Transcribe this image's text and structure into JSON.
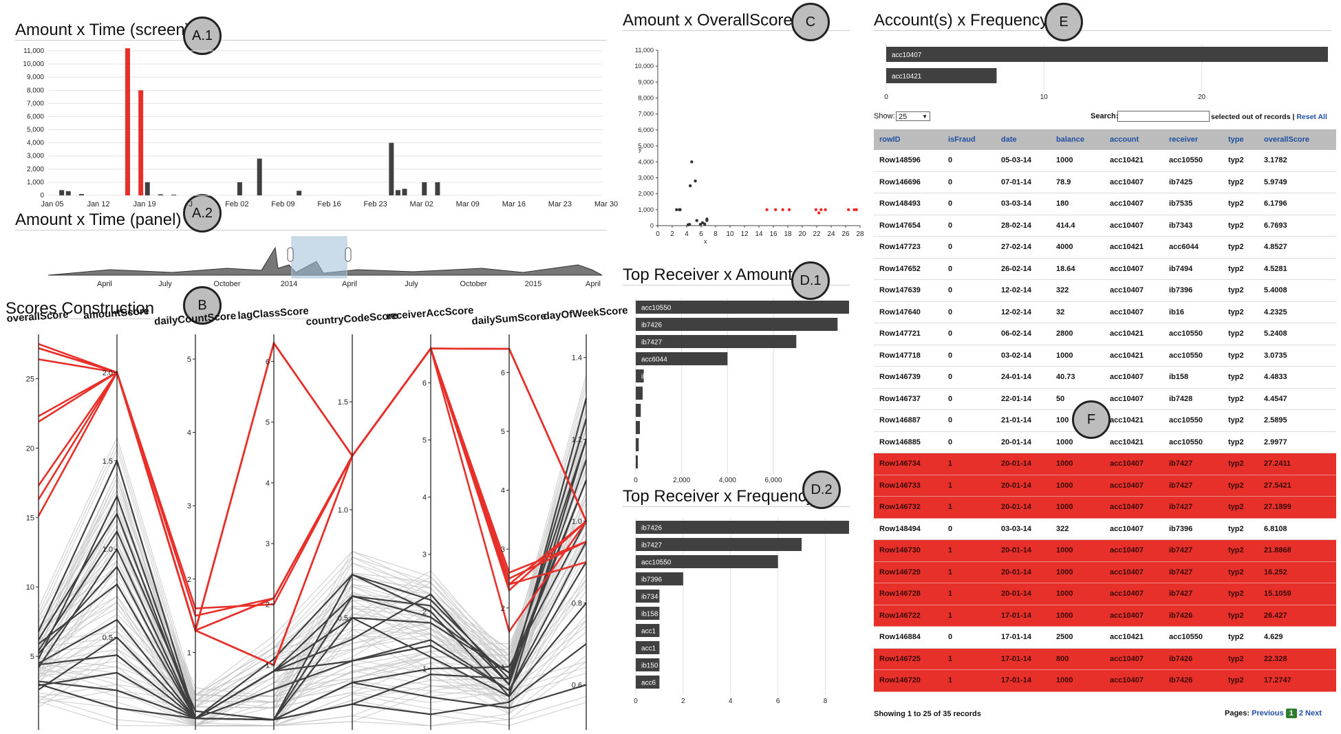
{
  "titles": {
    "a1": "Amount x Time (screen)",
    "a2": "Amount x Time (panel)",
    "b": "Scores Construction",
    "c": "Amount x OverallScore",
    "d1": "Top Receiver x Amount",
    "d2": "Top Receiver x Frequency",
    "e": "Account(s) x Frequency"
  },
  "badges": {
    "a1": "A.1",
    "a2": "A.2",
    "b": "B",
    "c": "C",
    "d1": "D.1",
    "d2": "D.2",
    "e": "E",
    "f": "F"
  },
  "colors": {
    "fraud": "#e8302a",
    "normal": "#404040",
    "light": "#c8c8c8",
    "header": "#bcbcbc",
    "link": "#1f4fa0"
  },
  "a1": {
    "y_ticks": [
      "0",
      "1,000",
      "2,000",
      "3,000",
      "4,000",
      "5,000",
      "6,000",
      "7,000",
      "8,000",
      "9,000",
      "10,000",
      "11,000"
    ],
    "x_ticks": [
      "Jan 05",
      "Jan 12",
      "Jan 19",
      "J",
      "Feb 02",
      "Feb 09",
      "Feb 16",
      "Feb 23",
      "Mar 02",
      "Mar 09",
      "Mar 16",
      "Mar 23",
      "Mar 30"
    ]
  },
  "a2": {
    "x_ticks": [
      "April",
      "July",
      "October",
      "2014",
      "April",
      "July",
      "October",
      "2015",
      "April"
    ]
  },
  "b": {
    "axes": [
      "overallScore",
      "amountScore",
      "dailyCountScore",
      "lagClassScore",
      "countryCodeScore",
      "receiverAccScore",
      "dailySumScore",
      "dayOfWeekScore"
    ]
  },
  "c": {
    "y_ticks": [
      "0",
      "1,000",
      "2,000",
      "3,000",
      "4,000",
      "5,000",
      "6,000",
      "7,000",
      "8,000",
      "9,000",
      "10,000",
      "11,000"
    ],
    "x_ticks": [
      "0",
      "2",
      "4",
      "6",
      "8",
      "10",
      "12",
      "14",
      "16",
      "18",
      "20",
      "22",
      "24",
      "26",
      "28"
    ],
    "xlabel": "x",
    "ylabel": "y"
  },
  "d1": {
    "bars": [
      "acc10550",
      "ib7426",
      "ib7427",
      "acc6044",
      "ib7",
      "",
      "",
      "",
      "",
      ""
    ],
    "x_ticks": [
      "0",
      "2,000",
      "4,000",
      "6,000"
    ]
  },
  "d2": {
    "bars": [
      "ib7426",
      "ib7427",
      "acc10550",
      "ib7396",
      "ib734",
      "ib158",
      "acc1",
      "acc1",
      "ib150",
      "acc6"
    ],
    "x_ticks": [
      "0",
      "2",
      "4",
      "6",
      "8"
    ]
  },
  "e": {
    "bars": [
      "acc10407",
      "acc10421"
    ],
    "x_ticks": [
      "0",
      "10",
      "20"
    ]
  },
  "table": {
    "show_label": "Show:",
    "show_value": "25",
    "search_label": "Search:",
    "selected_text": "selected out of records",
    "reset_link": "Reset All",
    "columns": [
      "rowID",
      "isFraud",
      "date",
      "balance",
      "account",
      "receiver",
      "type",
      "overallScore"
    ],
    "rows": [
      [
        "Row148596",
        "0",
        "05-03-14",
        "1000",
        "acc10421",
        "acc10550",
        "typ2",
        "3.1782"
      ],
      [
        "Row146696",
        "0",
        "07-01-14",
        "78.9",
        "acc10407",
        "ib7425",
        "typ2",
        "5.9749"
      ],
      [
        "Row148493",
        "0",
        "03-03-14",
        "180",
        "acc10407",
        "ib7535",
        "typ2",
        "6.1796"
      ],
      [
        "Row147654",
        "0",
        "28-02-14",
        "414.4",
        "acc10407",
        "ib7343",
        "typ2",
        "6.7693"
      ],
      [
        "Row147723",
        "0",
        "27-02-14",
        "4000",
        "acc10421",
        "acc6044",
        "typ2",
        "4.8527"
      ],
      [
        "Row147652",
        "0",
        "26-02-14",
        "18.64",
        "acc10407",
        "ib7494",
        "typ2",
        "4.5281"
      ],
      [
        "Row147639",
        "0",
        "12-02-14",
        "322",
        "acc10407",
        "ib7396",
        "typ2",
        "5.4008"
      ],
      [
        "Row147640",
        "0",
        "12-02-14",
        "32",
        "acc10407",
        "ib16",
        "typ2",
        "4.2325"
      ],
      [
        "Row147721",
        "0",
        "06-02-14",
        "2800",
        "acc10421",
        "acc10550",
        "typ2",
        "5.2408"
      ],
      [
        "Row147718",
        "0",
        "03-02-14",
        "1000",
        "acc10421",
        "acc10550",
        "typ2",
        "3.0735"
      ],
      [
        "Row146739",
        "0",
        "24-01-14",
        "40.73",
        "acc10407",
        "ib158",
        "typ2",
        "4.4833"
      ],
      [
        "Row146737",
        "0",
        "22-01-14",
        "50",
        "acc10407",
        "ib7428",
        "typ2",
        "4.4547"
      ],
      [
        "Row146887",
        "0",
        "21-01-14",
        "100",
        "acc10421",
        "acc10550",
        "typ2",
        "2.5895"
      ],
      [
        "Row146885",
        "0",
        "20-01-14",
        "1000",
        "acc10421",
        "acc10550",
        "typ2",
        "2.9977"
      ],
      [
        "Row146734",
        "1",
        "20-01-14",
        "1000",
        "acc10407",
        "ib7427",
        "typ2",
        "27.2411"
      ],
      [
        "Row146733",
        "1",
        "20-01-14",
        "1000",
        "acc10407",
        "ib7427",
        "typ2",
        "27.5421"
      ],
      [
        "Row146732",
        "1",
        "20-01-14",
        "1000",
        "acc10407",
        "ib7427",
        "typ2",
        "27.1899"
      ],
      [
        "Row148494",
        "0",
        "03-03-14",
        "322",
        "acc10407",
        "ib7396",
        "typ2",
        "6.8108"
      ],
      [
        "Row146730",
        "1",
        "20-01-14",
        "1000",
        "acc10407",
        "ib7427",
        "typ2",
        "21.8868"
      ],
      [
        "Row146729",
        "1",
        "20-01-14",
        "1000",
        "acc10407",
        "ib7427",
        "typ2",
        "16.252"
      ],
      [
        "Row146728",
        "1",
        "20-01-14",
        "1000",
        "acc10407",
        "ib7427",
        "typ2",
        "15.1059"
      ],
      [
        "Row146722",
        "1",
        "17-01-14",
        "1000",
        "acc10407",
        "ib7426",
        "typ2",
        "26.427"
      ],
      [
        "Row146884",
        "0",
        "17-01-14",
        "2500",
        "acc10421",
        "acc10550",
        "typ2",
        "4.629"
      ],
      [
        "Row146725",
        "1",
        "17-01-14",
        "800",
        "acc10407",
        "ib7426",
        "typ2",
        "22.328"
      ],
      [
        "Row146720",
        "1",
        "17-01-14",
        "1000",
        "acc10407",
        "ib7426",
        "typ2",
        "17.2747"
      ]
    ],
    "footer": "Showing 1 to 25 of 35 records",
    "pages_label": "Pages:",
    "prev": "Previous",
    "page1": "1",
    "page2": "2",
    "next": "Next"
  },
  "chart_data": [
    {
      "type": "bar",
      "title": "Amount x Time (screen)",
      "x": [
        "2014-01-07",
        "2014-01-08",
        "2014-01-10",
        "2014-01-17",
        "2014-01-19",
        "2014-01-20",
        "2014-01-22",
        "2014-01-24",
        "2014-02-03",
        "2014-02-06",
        "2014-02-12",
        "2014-02-26",
        "2014-02-27",
        "2014-02-28",
        "2014-03-03",
        "2014-03-05"
      ],
      "values": [
        400,
        320,
        100,
        11200,
        8000,
        1000,
        80,
        50,
        1000,
        2800,
        350,
        4000,
        400,
        500,
        1000,
        1000
      ],
      "fraud": [
        false,
        false,
        false,
        true,
        true,
        false,
        false,
        false,
        false,
        false,
        false,
        false,
        false,
        false,
        false,
        false
      ],
      "ylim": [
        0,
        11000
      ]
    },
    {
      "type": "area",
      "title": "Amount x Time (panel)",
      "x_ticks": [
        "April",
        "July",
        "October",
        "2014",
        "April",
        "July",
        "October",
        "2015",
        "April"
      ],
      "brush": [
        "2014-01-05",
        "2014-03-30"
      ]
    },
    {
      "type": "scatter",
      "title": "Amount x OverallScore",
      "xlabel": "x",
      "ylabel": "y",
      "xlim": [
        0,
        28
      ],
      "ylim": [
        0,
        11000
      ],
      "normal_points": [
        [
          2.6,
          1000
        ],
        [
          3,
          1000
        ],
        [
          4.2,
          50
        ],
        [
          4.4,
          80
        ],
        [
          4.5,
          2500
        ],
        [
          4.7,
          4000
        ],
        [
          5.2,
          2800
        ],
        [
          5.4,
          320
        ],
        [
          5.9,
          80
        ],
        [
          6.2,
          180
        ],
        [
          6.5,
          100
        ],
        [
          6.8,
          414
        ],
        [
          6.8,
          320
        ],
        [
          3.1,
          1000
        ]
      ],
      "fraud_points": [
        [
          15.1,
          1000
        ],
        [
          16.3,
          1000
        ],
        [
          17.3,
          1000
        ],
        [
          18.2,
          1000
        ],
        [
          21.9,
          1000
        ],
        [
          22.3,
          800
        ],
        [
          22.6,
          1000
        ],
        [
          23.2,
          1000
        ],
        [
          26.4,
          1000
        ],
        [
          27.2,
          1000
        ],
        [
          27.5,
          1000
        ]
      ]
    },
    {
      "type": "bar",
      "title": "Top Receiver x Amount",
      "orientation": "horizontal",
      "categories": [
        "acc10550",
        "ib7426",
        "ib7427",
        "acc6044",
        "ib7",
        "",
        "",
        "",
        "",
        ""
      ],
      "values": [
        9300,
        8800,
        7000,
        4000,
        350,
        300,
        220,
        180,
        130,
        50
      ],
      "xlim": [
        0,
        9300
      ]
    },
    {
      "type": "bar",
      "title": "Top Receiver x Frequency",
      "orientation": "horizontal",
      "categories": [
        "ib7426",
        "ib7427",
        "acc10550",
        "ib7396",
        "ib734",
        "ib158",
        "acc1",
        "acc1",
        "ib150",
        "acc6"
      ],
      "values": [
        9,
        7,
        6,
        2,
        1,
        1,
        1,
        1,
        1,
        1
      ],
      "xlim": [
        0,
        9
      ]
    },
    {
      "type": "bar",
      "title": "Account(s) x Frequency",
      "orientation": "horizontal",
      "categories": [
        "acc10407",
        "acc10421"
      ],
      "values": [
        28,
        7
      ],
      "xlim": [
        0,
        28
      ]
    },
    {
      "type": "line",
      "title": "Scores Construction",
      "axes": [
        "overallScore",
        "amountScore",
        "dailyCountScore",
        "lagClassScore",
        "countryCodeScore",
        "receiverAccScore",
        "dailySumScore",
        "dayOfWeekScore"
      ],
      "axis_ranges": [
        [
          0,
          28
        ],
        [
          0,
          2.2
        ],
        [
          0,
          5.3
        ],
        [
          0,
          6.4
        ],
        [
          0,
          1.8
        ],
        [
          0,
          6.8
        ],
        [
          0,
          6.6
        ],
        [
          0.5,
          1.45
        ]
      ],
      "fraud_lines": [
        [
          27.2,
          2.0,
          1.3,
          6.3,
          1.25,
          6.6,
          6.4,
          1.0
        ],
        [
          27.5,
          2.0,
          1.3,
          6.3,
          1.25,
          6.6,
          6.4,
          1.0
        ],
        [
          27.2,
          2.0,
          1.3,
          6.3,
          1.25,
          6.6,
          6.4,
          1.0
        ],
        [
          26.4,
          2.0,
          1.3,
          2.1,
          1.25,
          6.6,
          2.4,
          0.9
        ],
        [
          22.3,
          2.0,
          1.3,
          2.1,
          1.25,
          6.6,
          2.6,
          0.95
        ],
        [
          21.9,
          2.0,
          1.5,
          2.1,
          1.25,
          6.6,
          2.3,
          1.0
        ],
        [
          17.3,
          2.0,
          1.3,
          1.0,
          1.25,
          6.6,
          2.5,
          0.95
        ],
        [
          16.3,
          2.0,
          1.3,
          1.0,
          1.25,
          6.6,
          2.4,
          1.0
        ],
        [
          15.1,
          2.0,
          1.6,
          2.0,
          1.25,
          6.6,
          1.6,
          1.0
        ]
      ],
      "normal_lines": [
        [
          6.8,
          1.5,
          0.1,
          1.1,
          0.7,
          2.0,
          0.5,
          1.2
        ],
        [
          6.2,
          1.2,
          0.1,
          0.1,
          0.6,
          2.1,
          0.7,
          1.3
        ],
        [
          5.9,
          0.8,
          0.1,
          0.9,
          0.5,
          1.8,
          0.9,
          1.1
        ],
        [
          5.4,
          1.1,
          0.2,
          0.1,
          0.7,
          2.2,
          0.8,
          1.25
        ],
        [
          5.2,
          0.9,
          0.1,
          0.6,
          0.3,
          1.5,
          0.6,
          0.9
        ],
        [
          4.8,
          1.3,
          0.1,
          0.1,
          0.2,
          1.0,
          1.0,
          1.0
        ],
        [
          4.5,
          0.6,
          0.1,
          0.9,
          0.4,
          2.3,
          0.7,
          1.15
        ],
        [
          4.4,
          0.4,
          0.1,
          0.1,
          0.5,
          1.2,
          0.5,
          0.8
        ],
        [
          4.2,
          1.0,
          0.1,
          0.9,
          0.6,
          1.9,
          0.9,
          1.2
        ],
        [
          3.2,
          0.2,
          0.1,
          0.1,
          0.1,
          0.2,
          0.4,
          0.7
        ],
        [
          3.0,
          0.1,
          0.1,
          0.1,
          0.2,
          0.5,
          0.3,
          0.6
        ],
        [
          2.6,
          0.5,
          0.1,
          0.9,
          0.3,
          1.4,
          0.6,
          0.95
        ],
        [
          2.9,
          0.3,
          0.1,
          0.1,
          0.1,
          0.9,
          0.8,
          1.1
        ]
      ]
    }
  ]
}
